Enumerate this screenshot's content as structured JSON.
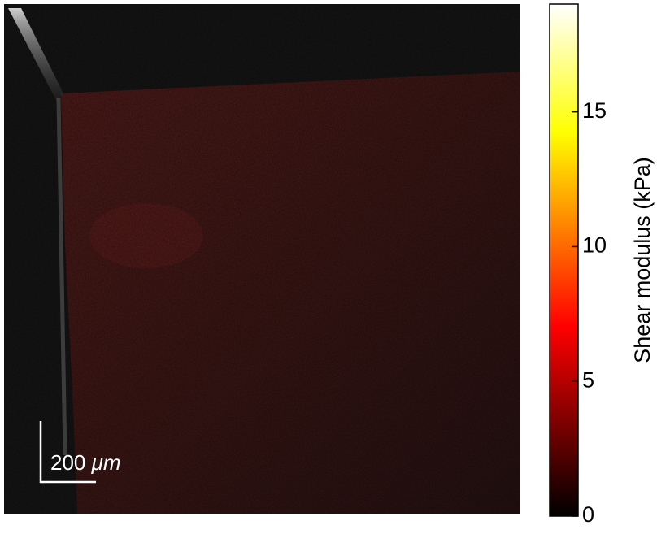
{
  "image": {
    "scale_bar": {
      "number": "200",
      "unit": "μm"
    }
  },
  "colorbar": {
    "label": "Shear modulus (kPa)",
    "lim": [
      0,
      19
    ],
    "ticks": [
      0,
      5,
      10,
      15
    ]
  }
}
